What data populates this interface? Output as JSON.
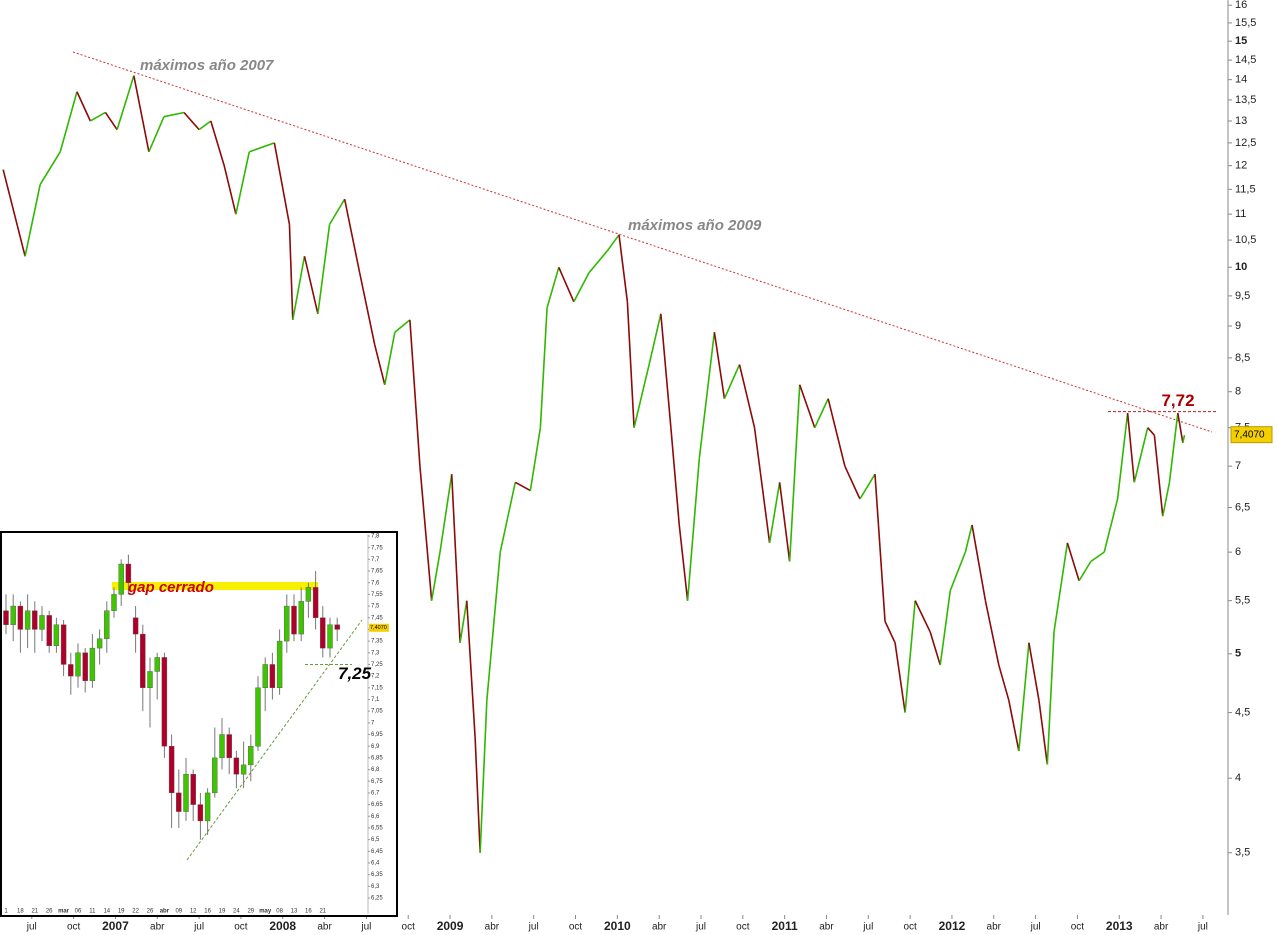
{
  "chart_data": [
    {
      "type": "line",
      "x": [
        2006.33,
        2006.46,
        2006.55,
        2006.67,
        2006.77,
        2006.85,
        2006.94,
        2007.01,
        2007.11,
        2007.2,
        2007.29,
        2007.41,
        2007.5,
        2007.57,
        2007.65,
        2007.72,
        2007.8,
        2007.95,
        2008.04,
        2008.06,
        2008.13,
        2008.21,
        2008.28,
        2008.37,
        2008.46,
        2008.55,
        2008.61,
        2008.67,
        2008.76,
        2008.82,
        2008.89,
        2008.94,
        2009.01,
        2009.06,
        2009.1,
        2009.15,
        2009.18,
        2009.22,
        2009.3,
        2009.39,
        2009.48,
        2009.54,
        2009.58,
        2009.65,
        2009.74,
        2009.83,
        2009.94,
        2010.01,
        2010.06,
        2010.1,
        2010.19,
        2010.26,
        2010.32,
        2010.37,
        2010.42,
        2010.49,
        2010.58,
        2010.64,
        2010.73,
        2010.82,
        2010.91,
        2010.97,
        2011.03,
        2011.09,
        2011.18,
        2011.26,
        2011.36,
        2011.45,
        2011.54,
        2011.6,
        2011.66,
        2011.72,
        2011.78,
        2011.87,
        2011.93,
        2011.99,
        2012.08,
        2012.12,
        2012.2,
        2012.28,
        2012.34,
        2012.4,
        2012.46,
        2012.52,
        2012.57,
        2012.61,
        2012.69,
        2012.76,
        2012.83,
        2012.91,
        2012.99,
        2013.05,
        2013.09,
        2013.17,
        2013.21,
        2013.26,
        2013.3,
        2013.35,
        2013.38,
        2013.39
      ],
      "values": [
        11.9,
        10.2,
        11.6,
        12.3,
        13.7,
        13.0,
        13.2,
        12.8,
        14.1,
        12.3,
        13.1,
        13.2,
        12.8,
        13.0,
        12.0,
        11.0,
        12.3,
        12.5,
        10.8,
        9.1,
        10.2,
        9.2,
        10.8,
        11.3,
        9.9,
        8.7,
        8.1,
        8.9,
        9.1,
        7.0,
        5.5,
        6.0,
        6.9,
        5.1,
        5.5,
        4.3,
        3.5,
        4.6,
        6.0,
        6.8,
        6.7,
        7.5,
        9.3,
        10.0,
        9.4,
        9.9,
        10.3,
        10.6,
        9.4,
        7.5,
        8.4,
        9.2,
        7.5,
        6.3,
        5.5,
        7.1,
        8.9,
        7.9,
        8.4,
        7.5,
        6.1,
        6.8,
        5.9,
        8.1,
        7.5,
        7.9,
        7.0,
        6.6,
        6.9,
        5.3,
        5.1,
        4.5,
        5.5,
        5.2,
        4.9,
        5.6,
        6.0,
        6.3,
        5.5,
        4.9,
        4.6,
        4.2,
        5.1,
        4.6,
        4.1,
        5.2,
        6.1,
        5.7,
        5.9,
        6.0,
        6.6,
        7.7,
        6.8,
        7.5,
        7.4,
        6.4,
        6.8,
        7.7,
        7.3,
        7.4
      ],
      "up_color": "#2fb800",
      "down_color": "#8b0a0a",
      "log_scale": true,
      "xlim": [
        2006.31,
        2013.65
      ],
      "ylim": [
        3.13,
        16.15
      ],
      "xticks": [
        {
          "value": 2006.5,
          "label": "jul"
        },
        {
          "value": 2006.75,
          "label": "oct"
        },
        2007,
        {
          "value": 2007.25,
          "label": "abr"
        },
        {
          "value": 2007.5,
          "label": "jul"
        },
        {
          "value": 2007.75,
          "label": "oct"
        },
        2008,
        {
          "value": 2008.25,
          "label": "abr"
        },
        {
          "value": 2008.5,
          "label": "jul"
        },
        {
          "value": 2008.75,
          "label": "oct"
        },
        2009,
        {
          "value": 2009.25,
          "label": "abr"
        },
        {
          "value": 2009.5,
          "label": "jul"
        },
        {
          "value": 2009.75,
          "label": "oct"
        },
        2010,
        {
          "value": 2010.25,
          "label": "abr"
        },
        {
          "value": 2010.5,
          "label": "jul"
        },
        {
          "value": 2010.75,
          "label": "oct"
        },
        2011,
        {
          "value": 2011.25,
          "label": "abr"
        },
        {
          "value": 2011.5,
          "label": "jul"
        },
        {
          "value": 2011.75,
          "label": "oct"
        },
        2012,
        {
          "value": 2012.25,
          "label": "abr"
        },
        {
          "value": 2012.5,
          "label": "jul"
        },
        {
          "value": 2012.75,
          "label": "oct"
        },
        2013,
        {
          "value": 2013.25,
          "label": "abr"
        },
        {
          "value": 2013.5,
          "label": "jul"
        }
      ],
      "yticks": [
        {
          "value": 3.5,
          "label": "3,5"
        },
        4,
        {
          "value": 4.5,
          "label": "4,5"
        },
        5,
        {
          "value": 5.5,
          "label": "5,5"
        },
        6,
        {
          "value": 6.5,
          "label": "6,5"
        },
        7,
        {
          "value": 7.5,
          "label": "7,5"
        },
        8,
        {
          "value": 8.5,
          "label": "8,5"
        },
        9,
        {
          "value": 9.5,
          "label": "9,5"
        },
        10,
        {
          "value": 10.5,
          "label": "10,5"
        },
        11,
        {
          "value": 11.5,
          "label": "11,5"
        },
        12,
        {
          "value": 12.5,
          "label": "12,5"
        },
        13,
        {
          "value": 13.5,
          "label": "13,5"
        },
        14,
        {
          "value": 14.5,
          "label": "14,5"
        },
        15,
        {
          "value": 15.5,
          "label": "15,5"
        },
        16
      ],
      "annotations": [
        {
          "text": "máximos año 2007"
        },
        {
          "text": "máximos año 2009"
        }
      ],
      "levels": [
        {
          "value": 7.72,
          "label": "7,72"
        }
      ],
      "last_price": {
        "value": 7.407,
        "label": "7,4070"
      }
    },
    {
      "type": "candlestick",
      "categories": [
        "1",
        null,
        "18",
        null,
        "21",
        null,
        "26",
        null,
        "mar",
        null,
        "06",
        null,
        "11",
        null,
        "14",
        null,
        "19",
        null,
        "22",
        null,
        "26",
        null,
        "abr",
        null,
        "09",
        null,
        "12",
        null,
        "16",
        null,
        "19",
        null,
        "24",
        null,
        "29",
        null,
        "may",
        null,
        "08",
        null,
        "13",
        null,
        "16",
        null,
        "21",
        null,
        null
      ],
      "open": [
        7.48,
        7.42,
        7.5,
        7.4,
        7.48,
        7.4,
        7.46,
        7.33,
        7.42,
        7.25,
        7.2,
        7.3,
        7.18,
        7.32,
        7.36,
        7.48,
        7.55,
        7.68,
        7.45,
        7.38,
        7.15,
        7.22,
        7.28,
        6.9,
        6.7,
        6.62,
        6.78,
        6.65,
        6.58,
        6.7,
        6.85,
        6.95,
        6.85,
        6.78,
        6.82,
        6.9,
        7.15,
        7.25,
        7.15,
        7.35,
        7.5,
        7.38,
        7.52,
        7.58,
        7.45,
        7.32,
        7.42
      ],
      "close": [
        7.42,
        7.5,
        7.4,
        7.48,
        7.4,
        7.46,
        7.33,
        7.42,
        7.25,
        7.2,
        7.3,
        7.18,
        7.32,
        7.36,
        7.48,
        7.55,
        7.68,
        7.6,
        7.38,
        7.15,
        7.22,
        7.28,
        6.9,
        6.7,
        6.62,
        6.78,
        6.65,
        6.58,
        6.7,
        6.85,
        6.95,
        6.85,
        6.78,
        6.82,
        6.9,
        7.15,
        7.25,
        7.15,
        7.35,
        7.5,
        7.38,
        7.52,
        7.58,
        7.45,
        7.32,
        7.42,
        7.4
      ],
      "high": [
        7.55,
        7.55,
        7.52,
        7.55,
        7.52,
        7.5,
        7.48,
        7.45,
        7.44,
        7.3,
        7.34,
        7.32,
        7.38,
        7.4,
        7.52,
        7.58,
        7.7,
        7.72,
        7.5,
        7.42,
        7.28,
        7.3,
        7.3,
        6.95,
        6.8,
        6.85,
        6.8,
        6.7,
        6.72,
        6.98,
        7.02,
        6.98,
        6.88,
        6.92,
        6.95,
        7.2,
        7.28,
        7.3,
        7.4,
        7.55,
        7.55,
        7.58,
        7.6,
        7.65,
        7.5,
        7.45,
        7.45
      ],
      "low": [
        7.38,
        7.35,
        7.3,
        7.32,
        7.3,
        7.35,
        7.3,
        7.3,
        7.2,
        7.12,
        7.15,
        7.13,
        7.15,
        7.25,
        7.3,
        7.45,
        7.5,
        7.55,
        7.3,
        7.05,
        6.98,
        7.1,
        6.85,
        6.55,
        6.55,
        6.58,
        6.58,
        6.5,
        6.52,
        6.68,
        6.8,
        6.78,
        6.72,
        6.72,
        6.75,
        6.88,
        7.05,
        7.1,
        7.12,
        7.3,
        7.35,
        7.35,
        7.45,
        7.4,
        7.28,
        7.28,
        7.35
      ],
      "up_color": "#3ec400",
      "down_color": "#b0002a",
      "ylim": [
        6.25,
        7.8
      ],
      "yticks": [
        {
          "value": 6.25,
          "label": "6,25"
        },
        {
          "value": 6.3,
          "label": "6,3"
        },
        {
          "value": 6.35,
          "label": "6,35"
        },
        {
          "value": 6.4,
          "label": "6,4"
        },
        {
          "value": 6.45,
          "label": "6,45"
        },
        {
          "value": 6.5,
          "label": "6,5"
        },
        {
          "value": 6.55,
          "label": "6,55"
        },
        {
          "value": 6.6,
          "label": "6,6"
        },
        {
          "value": 6.65,
          "label": "6,65"
        },
        {
          "value": 6.7,
          "label": "6,7"
        },
        {
          "value": 6.75,
          "label": "6,75"
        },
        {
          "value": 6.8,
          "label": "6,8"
        },
        {
          "value": 6.85,
          "label": "6,85"
        },
        {
          "value": 6.9,
          "label": "6,9"
        },
        {
          "value": 6.95,
          "label": "6,95"
        },
        7,
        {
          "value": 7.05,
          "label": "7,05"
        },
        {
          "value": 7.1,
          "label": "7,1"
        },
        {
          "value": 7.15,
          "label": "7,15"
        },
        {
          "value": 7.2,
          "label": "7,2"
        },
        {
          "value": 7.25,
          "label": "7,25"
        },
        {
          "value": 7.3,
          "label": "7,3"
        },
        {
          "value": 7.35,
          "label": "7,35"
        },
        {
          "value": 7.4,
          "label": "7,4"
        },
        {
          "value": 7.45,
          "label": "7,45"
        },
        {
          "value": 7.5,
          "label": "7,5"
        },
        {
          "value": 7.55,
          "label": "7,55"
        },
        {
          "value": 7.6,
          "label": "7,6"
        },
        {
          "value": 7.65,
          "label": "7,65"
        },
        {
          "value": 7.7,
          "label": "7,7"
        },
        {
          "value": 7.75,
          "label": "7,75"
        },
        {
          "value": 7.8,
          "label": "7,8"
        }
      ],
      "annotations": [
        {
          "text": "gap cerrado"
        }
      ],
      "levels": [
        {
          "value": 7.25,
          "label": "7,25"
        }
      ],
      "last_price": {
        "value": 7.407,
        "label": "7,4070"
      }
    }
  ]
}
